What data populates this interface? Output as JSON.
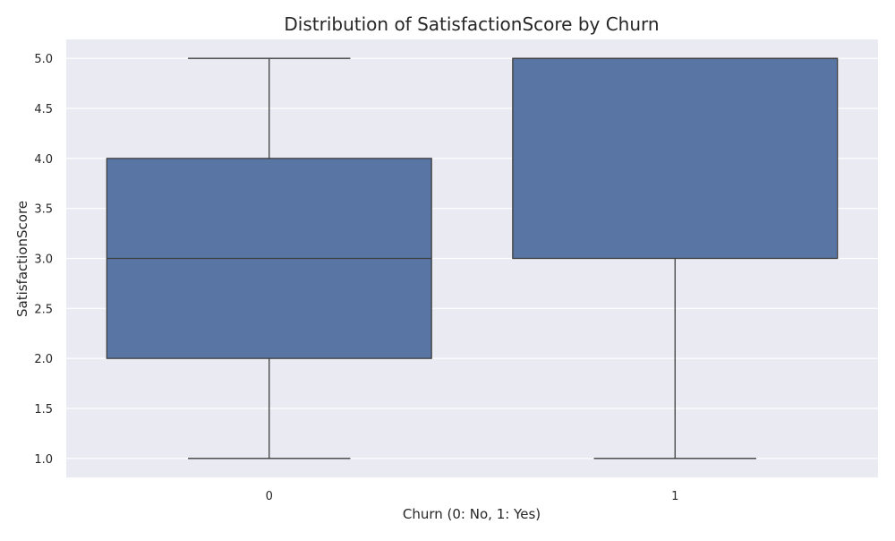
{
  "chart_data": {
    "type": "box",
    "title": "Distribution of SatisfactionScore by Churn",
    "xlabel": "Churn (0: No, 1: Yes)",
    "ylabel": "SatisfactionScore",
    "categories": [
      "0",
      "1"
    ],
    "boxes": [
      {
        "category": "0",
        "min": 1.0,
        "q1": 2.0,
        "median": 3.0,
        "q3": 4.0,
        "max": 5.0
      },
      {
        "category": "1",
        "min": 1.0,
        "q1": 3.0,
        "median": 5.0,
        "q3": 5.0,
        "max": 5.0
      }
    ],
    "yticks": [
      "1.0",
      "1.5",
      "2.0",
      "2.5",
      "3.0",
      "3.5",
      "4.0",
      "4.5",
      "5.0"
    ],
    "ylim": [
      0.81,
      5.19
    ],
    "grid": true,
    "colors": {
      "box_fill": "#5975a4",
      "box_edge": "#3d3d3d",
      "plot_background": "#eaeaf2",
      "grid": "#ffffff",
      "text": "#262626"
    }
  }
}
